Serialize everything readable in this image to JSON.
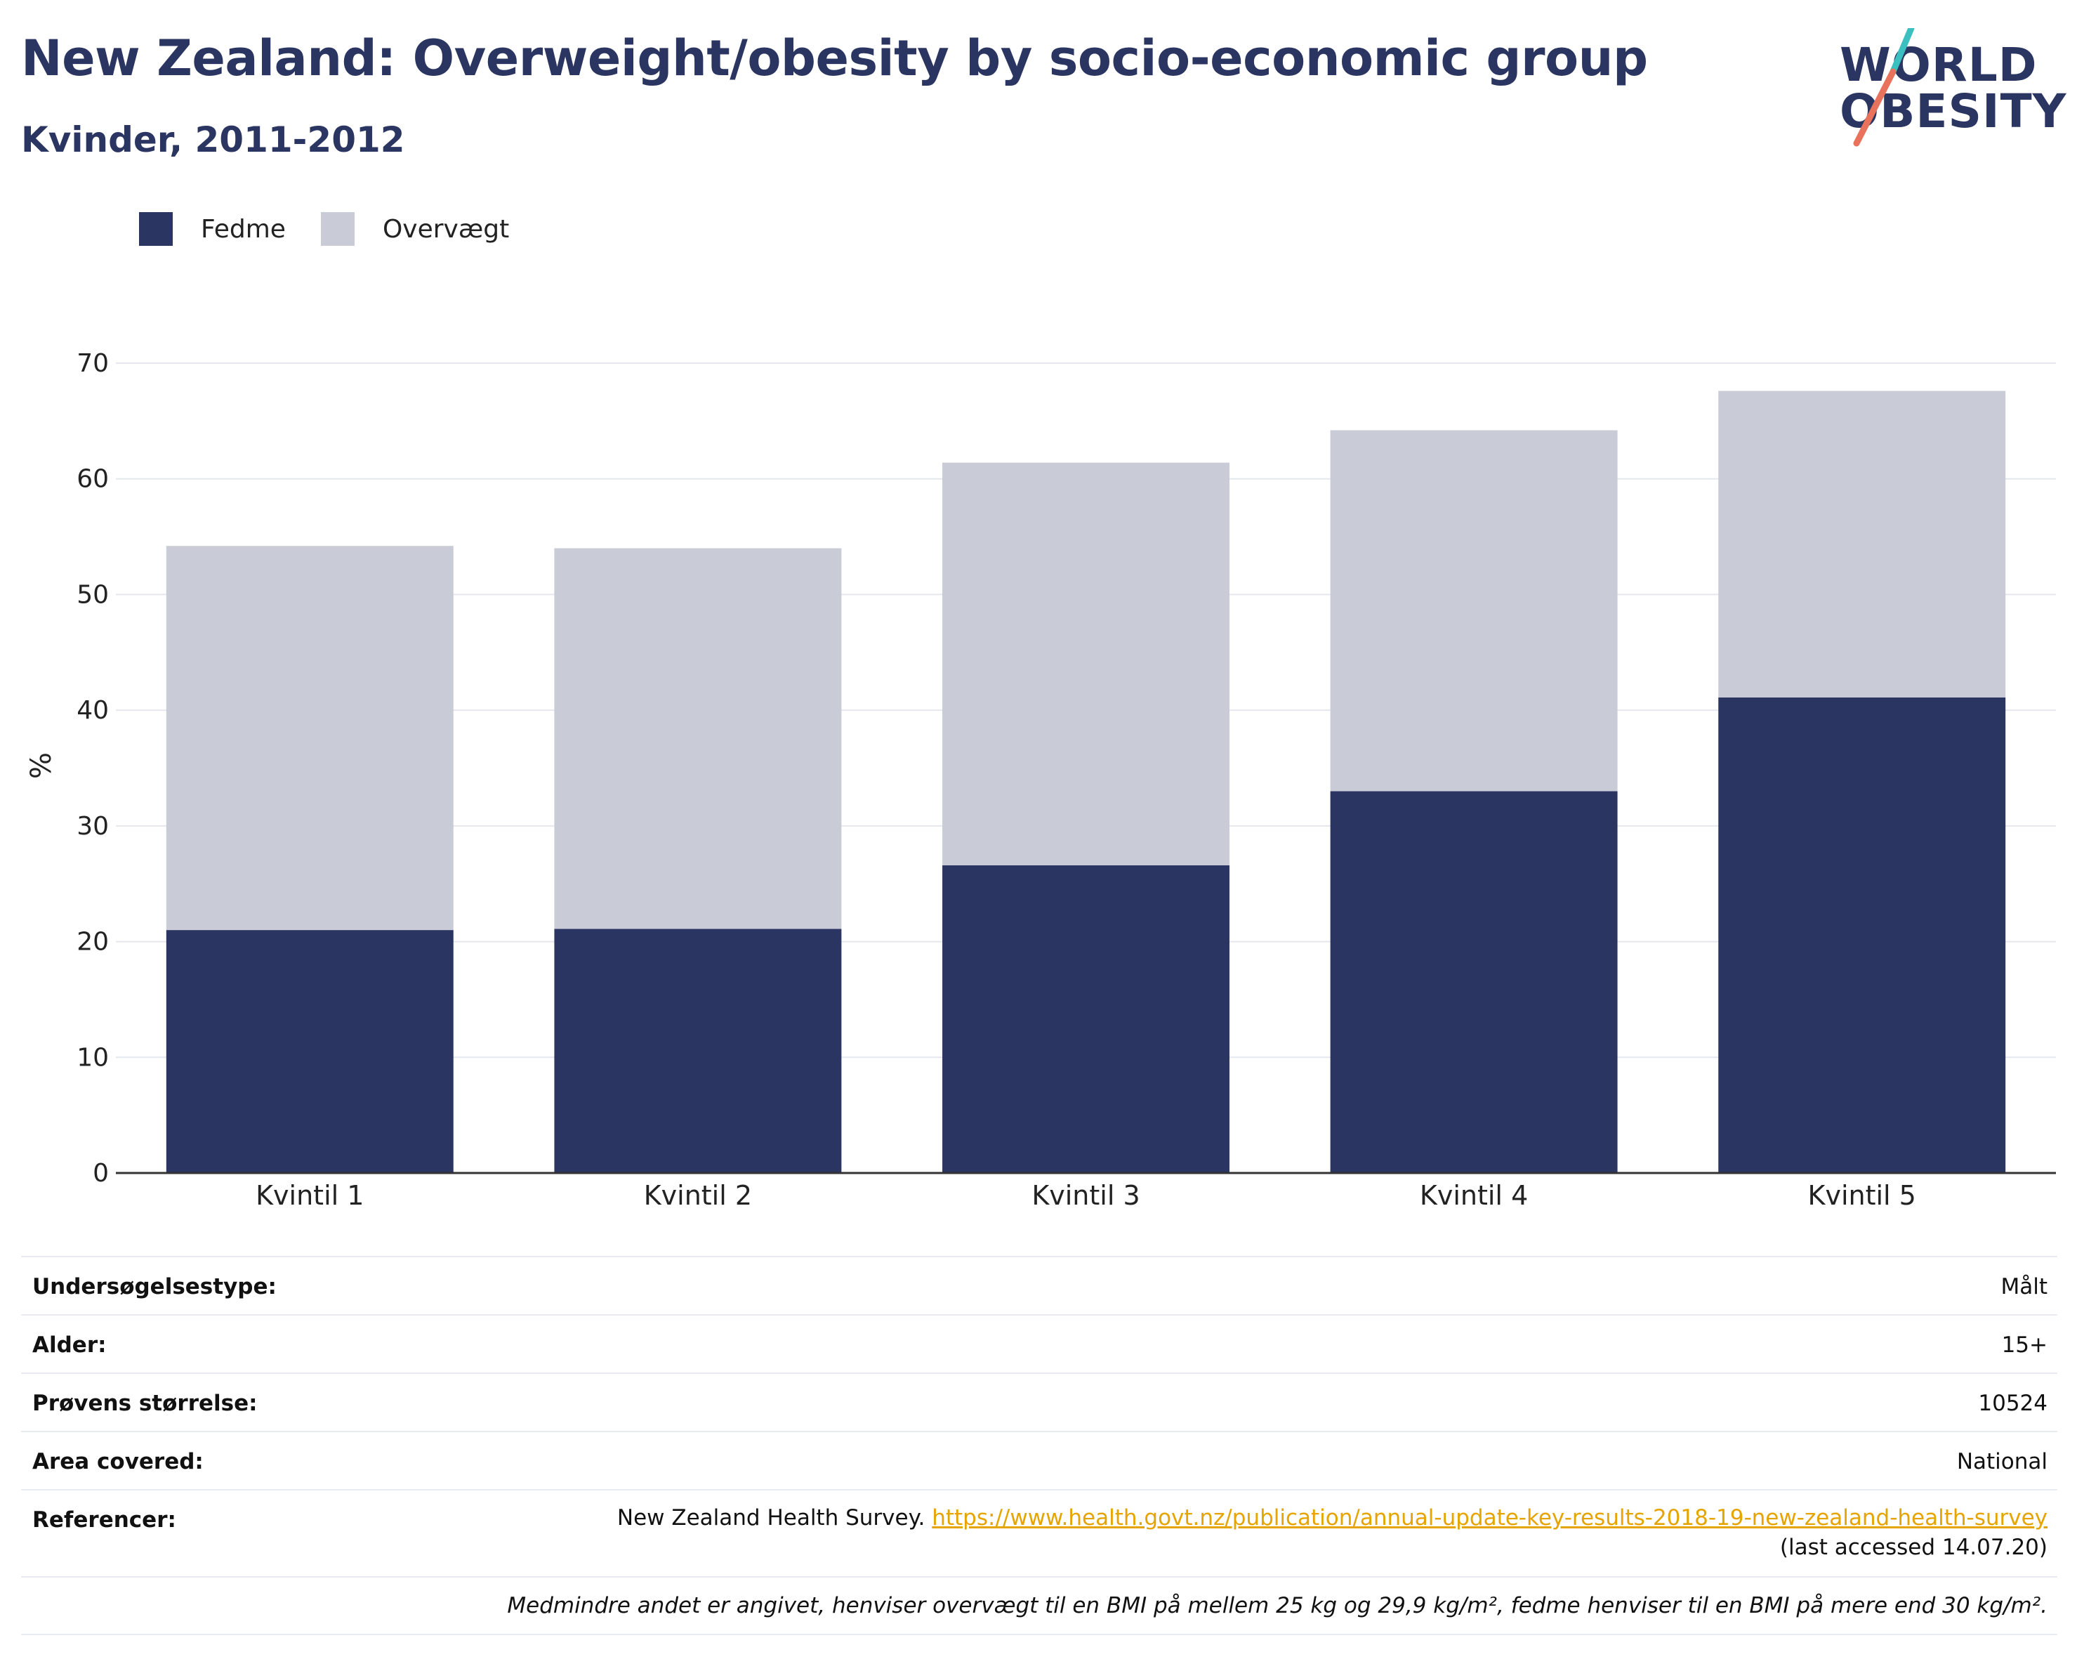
{
  "header": {
    "title": "New Zealand: Overweight/obesity by socio-economic group",
    "subtitle": "Kvinder, 2011-2012",
    "logo_line1": "WORLD",
    "logo_line2": "OBESITY"
  },
  "colors": {
    "fedme": "#2b3561",
    "overvaegt": "#c9cbd7",
    "title": "#2b3561",
    "link": "#e5a400",
    "logo_teal": "#3bbfbf",
    "logo_coral": "#e8725c"
  },
  "legend": {
    "items": [
      {
        "label": "Fedme",
        "color": "#2b3561"
      },
      {
        "label": "Overvægt",
        "color": "#c9cbd7"
      }
    ]
  },
  "chart_data": {
    "type": "bar",
    "stacked": true,
    "categories": [
      "Kvintil 1",
      "Kvintil 2",
      "Kvintil 3",
      "Kvintil 4",
      "Kvintil 5"
    ],
    "series": [
      {
        "name": "Fedme",
        "values": [
          21.0,
          21.1,
          26.6,
          33.0,
          41.1
        ]
      },
      {
        "name": "Overvægt",
        "values": [
          33.2,
          32.9,
          34.8,
          31.2,
          26.5
        ]
      }
    ],
    "totals": [
      54.2,
      54.0,
      61.4,
      64.2,
      67.6
    ],
    "ylabel": "%",
    "ylim": [
      0,
      70
    ],
    "yticks": [
      0,
      10,
      20,
      30,
      40,
      50,
      60,
      70
    ],
    "grid": true,
    "legend_position": "top-left"
  },
  "info": {
    "rows": [
      {
        "key": "Undersøgelsestype:",
        "value": "Målt"
      },
      {
        "key": "Alder:",
        "value": "15+"
      },
      {
        "key": "Prøvens størrelse:",
        "value": "10524"
      },
      {
        "key": "Area covered:",
        "value": "National"
      }
    ],
    "references": {
      "key": "Referencer:",
      "source": "New Zealand Health Survey.",
      "url": "https://www.health.govt.nz/publication/annual-update-key-results-2018-19-new-zealand-health-survey",
      "accessed": "(last accessed 14.07.20)"
    },
    "note": "Medmindre andet er angivet, henviser overvægt til en BMI på mellem 25 kg og 29,9 kg/m², fedme henviser til en BMI på mere end 30 kg/m²."
  }
}
